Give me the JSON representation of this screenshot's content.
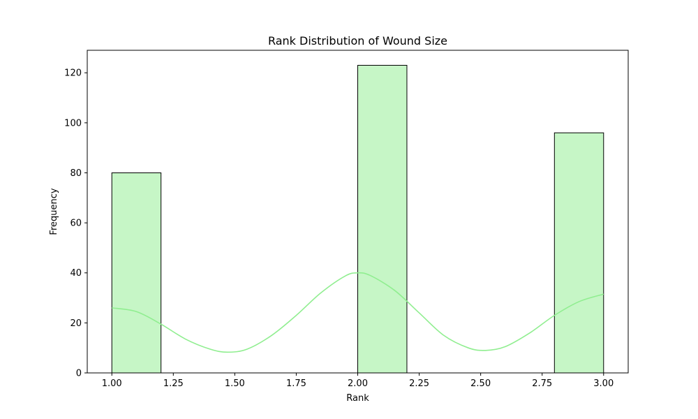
{
  "chart_data": {
    "type": "bar",
    "title": "Rank Distribution of Wound Size",
    "xlabel": "Rank",
    "ylabel": "Frequency",
    "xlim": [
      0.9,
      3.1
    ],
    "ylim": [
      0,
      129
    ],
    "x_ticks": [
      1.0,
      1.25,
      1.5,
      1.75,
      2.0,
      2.25,
      2.5,
      2.75,
      3.0
    ],
    "x_tick_labels": [
      "1.00",
      "1.25",
      "1.50",
      "1.75",
      "2.00",
      "2.25",
      "2.50",
      "2.75",
      "3.00"
    ],
    "y_ticks": [
      0,
      20,
      40,
      60,
      80,
      100,
      120
    ],
    "y_tick_labels": [
      "0",
      "20",
      "40",
      "60",
      "80",
      "100",
      "120"
    ],
    "bins": [
      {
        "x0": 1.0,
        "x1": 1.2,
        "value": 80
      },
      {
        "x0": 2.0,
        "x1": 2.2,
        "value": 123
      },
      {
        "x0": 2.8,
        "x1": 3.0,
        "value": 96
      }
    ],
    "kde_curve": {
      "x": [
        1.0,
        1.1,
        1.2,
        1.3,
        1.4,
        1.47,
        1.55,
        1.65,
        1.75,
        1.85,
        1.95,
        2.0,
        2.05,
        2.15,
        2.25,
        2.35,
        2.45,
        2.52,
        2.6,
        2.7,
        2.8,
        2.9,
        3.0
      ],
      "y": [
        26,
        24.5,
        19.5,
        13.5,
        9.5,
        8.3,
        9.5,
        15,
        23,
        32,
        38.8,
        40,
        39,
        33,
        24,
        15,
        10,
        9,
        10.5,
        16,
        23,
        28.5,
        31.5
      ]
    },
    "grid": false,
    "colors": {
      "bar_fill": "#c6f6c6",
      "bar_edge": "#000000",
      "kde_line": "#90ee90",
      "axis": "#000000"
    }
  }
}
